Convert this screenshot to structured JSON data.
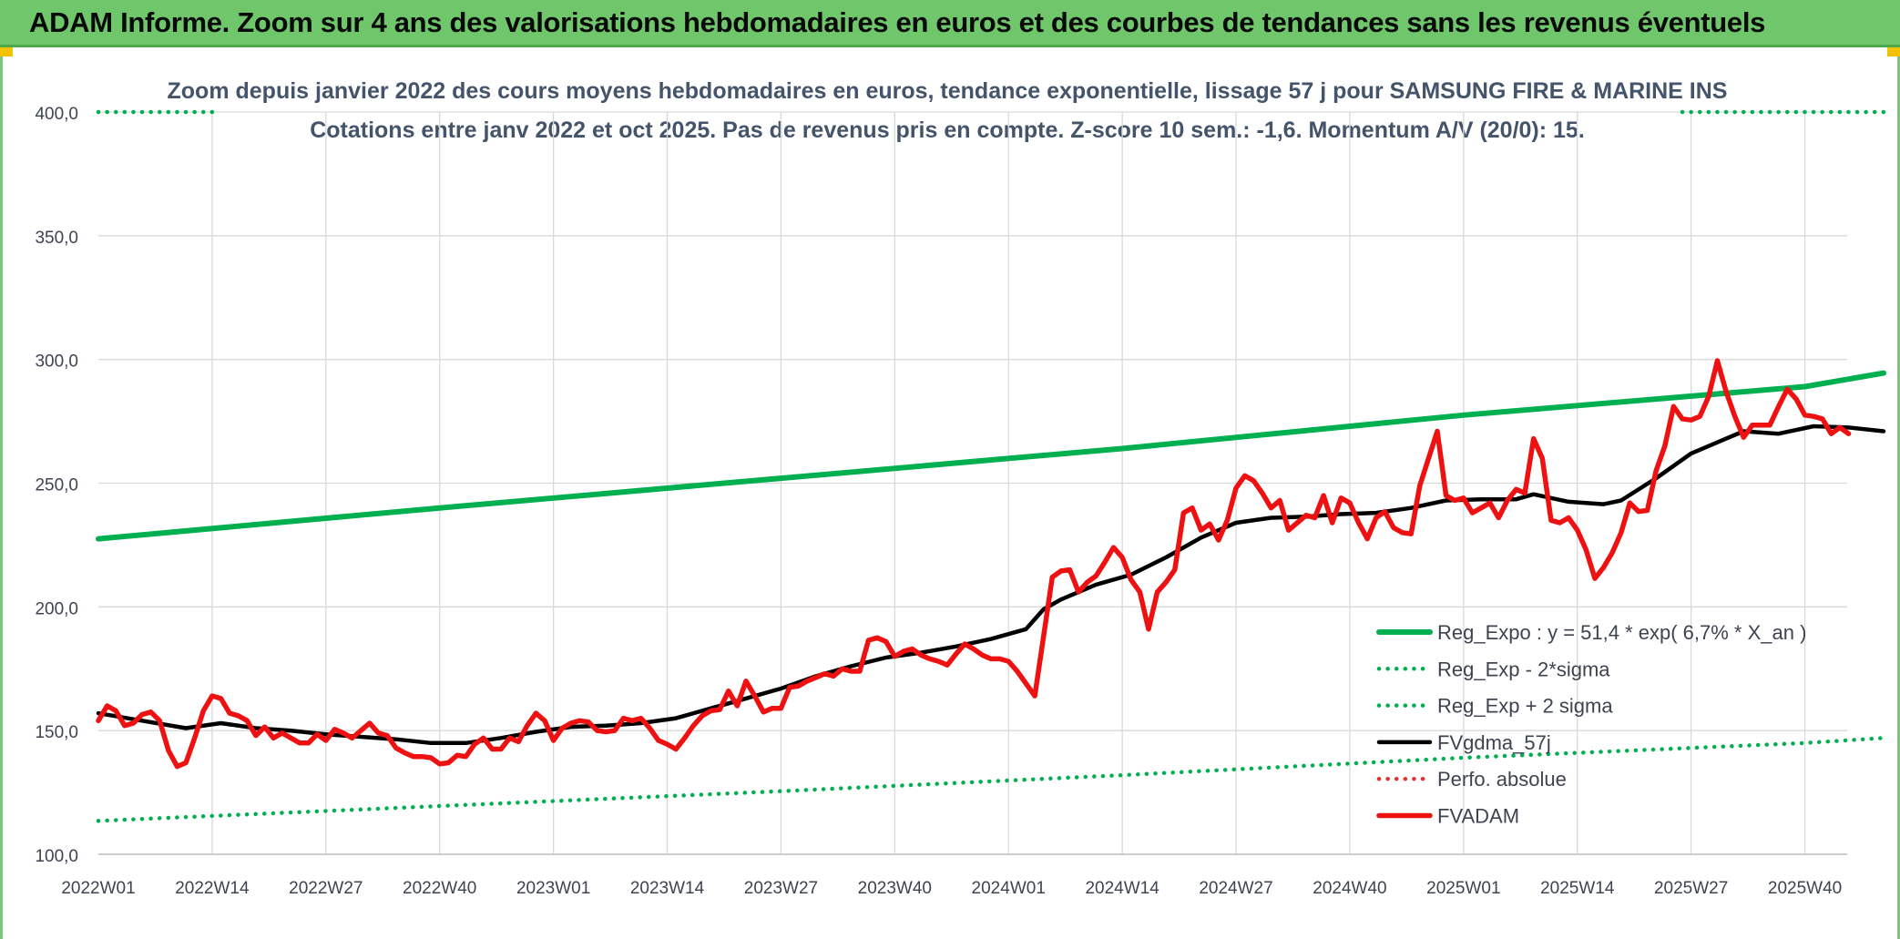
{
  "banner": {
    "text": "ADAM Informe. Zoom sur 4 ans des valorisations hebdomadaires en euros et des courbes de tendances sans les revenus éventuels"
  },
  "colors": {
    "banner_green": "#6fc66b",
    "trend_green": "#00b050",
    "price_red": "#ee1111",
    "smooth_black": "#000000",
    "perf_red": "#e53030"
  },
  "chart_data": {
    "type": "line",
    "title": "Zoom depuis janvier 2022 des cours moyens hebdomadaires en euros, tendance exponentielle, lissage 57 j pour SAMSUNG FIRE & MARINE INS",
    "subtitle": "Cotations entre janv 2022 et oct 2025. Pas de revenus pris en compte. Z-score 10 sem.: -1,6. Momentum A/V (20/0): 15.",
    "xlabel": "",
    "ylabel": "",
    "ylim": [
      100,
      400
    ],
    "y_ticks": [
      "100,0",
      "150,0",
      "200,0",
      "250,0",
      "300,0",
      "350,0",
      "400,0"
    ],
    "x_ticks": [
      "2022W01",
      "2022W14",
      "2022W27",
      "2022W40",
      "2023W01",
      "2023W14",
      "2023W27",
      "2023W40",
      "2024W01",
      "2024W14",
      "2024W27",
      "2024W40",
      "2025W01",
      "2025W14",
      "2025W27",
      "2025W40"
    ],
    "grid": true,
    "legend_position": "bottom-right",
    "series": [
      {
        "name": "Reg_Expo : y = 51,4 * exp( 6,7% *  X_an )",
        "style": "solid-thick",
        "color": "#00b050",
        "points": [
          [
            0,
            227.5
          ],
          [
            39,
            240
          ],
          [
            78,
            252
          ],
          [
            117,
            264
          ],
          [
            156,
            277.5
          ],
          [
            195,
            289
          ],
          [
            204,
            294.5
          ]
        ]
      },
      {
        "name": "Reg_Exp - 2*sigma",
        "style": "dotted",
        "color": "#00b050",
        "points": [
          [
            0,
            113.5
          ],
          [
            39,
            119.5
          ],
          [
            78,
            125.5
          ],
          [
            117,
            132
          ],
          [
            156,
            139
          ],
          [
            195,
            145
          ],
          [
            204,
            147
          ]
        ]
      },
      {
        "name": "Reg_Exp + 2 sigma",
        "style": "dotted",
        "color": "#00b050",
        "points": [
          [
            0,
            400
          ],
          [
            13,
            400
          ],
          [
            195,
            400
          ],
          [
            204,
            400
          ]
        ],
        "visible_segments": [
          [
            0,
            13
          ],
          [
            181,
            204
          ]
        ]
      },
      {
        "name": "FVgdma_57j",
        "style": "solid",
        "color": "#000000",
        "points": [
          [
            0,
            157
          ],
          [
            5,
            154
          ],
          [
            10,
            151
          ],
          [
            14,
            153
          ],
          [
            18,
            151
          ],
          [
            22,
            150
          ],
          [
            26,
            148.5
          ],
          [
            30,
            147.5
          ],
          [
            34,
            146.5
          ],
          [
            38,
            145
          ],
          [
            42,
            145
          ],
          [
            46,
            147
          ],
          [
            50,
            149.5
          ],
          [
            54,
            151.5
          ],
          [
            58,
            152
          ],
          [
            62,
            153
          ],
          [
            66,
            155
          ],
          [
            70,
            159
          ],
          [
            74,
            163
          ],
          [
            78,
            167
          ],
          [
            82,
            172
          ],
          [
            86,
            176
          ],
          [
            90,
            179.5
          ],
          [
            94,
            181.5
          ],
          [
            98,
            184
          ],
          [
            102,
            187
          ],
          [
            106,
            191
          ],
          [
            108,
            199
          ],
          [
            110,
            203
          ],
          [
            114,
            209
          ],
          [
            118,
            213
          ],
          [
            122,
            220
          ],
          [
            126,
            228
          ],
          [
            130,
            234
          ],
          [
            134,
            236
          ],
          [
            138,
            236.5
          ],
          [
            142,
            237.5
          ],
          [
            146,
            238
          ],
          [
            150,
            240
          ],
          [
            154,
            243
          ],
          [
            158,
            243.5
          ],
          [
            162,
            243.5
          ],
          [
            164,
            245.5
          ],
          [
            168,
            242.5
          ],
          [
            172,
            241.5
          ],
          [
            174,
            243
          ],
          [
            178,
            252
          ],
          [
            182,
            262
          ],
          [
            186,
            268
          ],
          [
            188,
            271
          ],
          [
            192,
            270
          ],
          [
            196,
            273
          ],
          [
            200,
            272.5
          ],
          [
            204,
            271
          ]
        ]
      },
      {
        "name": "Perfo. absolue",
        "style": "dotted",
        "color": "#e53030",
        "points": []
      },
      {
        "name": "FVADAM",
        "style": "solid-thick",
        "color": "#ee1111",
        "points": [
          [
            0,
            154
          ],
          [
            1,
            160
          ],
          [
            2,
            158
          ],
          [
            3,
            152
          ],
          [
            4,
            153
          ],
          [
            5,
            156.5
          ],
          [
            6,
            157.5
          ],
          [
            7,
            154
          ],
          [
            8,
            142
          ],
          [
            9,
            135.5
          ],
          [
            10,
            137
          ],
          [
            11,
            147
          ],
          [
            12,
            158
          ],
          [
            13,
            164
          ],
          [
            14,
            163
          ],
          [
            15,
            157
          ],
          [
            16,
            156
          ],
          [
            17,
            154
          ],
          [
            18,
            148
          ],
          [
            19,
            151.5
          ],
          [
            20,
            147
          ],
          [
            21,
            149
          ],
          [
            22,
            147
          ],
          [
            23,
            145
          ],
          [
            24,
            145
          ],
          [
            25,
            148.5
          ],
          [
            26,
            146
          ],
          [
            27,
            150.5
          ],
          [
            28,
            149
          ],
          [
            29,
            147
          ],
          [
            30,
            150
          ],
          [
            31,
            153
          ],
          [
            32,
            149
          ],
          [
            33,
            148
          ],
          [
            34,
            143
          ],
          [
            35,
            141
          ],
          [
            36,
            139.5
          ],
          [
            37,
            139.5
          ],
          [
            38,
            139
          ],
          [
            39,
            136.5
          ],
          [
            40,
            137
          ],
          [
            41,
            140
          ],
          [
            42,
            139.5
          ],
          [
            43,
            144.5
          ],
          [
            44,
            147
          ],
          [
            45,
            142.5
          ],
          [
            46,
            142.5
          ],
          [
            47,
            147
          ],
          [
            48,
            145.5
          ],
          [
            49,
            152
          ],
          [
            50,
            157
          ],
          [
            51,
            154
          ],
          [
            52,
            146
          ],
          [
            53,
            151
          ],
          [
            54,
            153
          ],
          [
            55,
            154
          ],
          [
            56,
            153.5
          ],
          [
            57,
            150
          ],
          [
            58,
            149.5
          ],
          [
            59,
            150
          ],
          [
            60,
            155
          ],
          [
            61,
            154
          ],
          [
            62,
            155
          ],
          [
            63,
            151
          ],
          [
            64,
            146
          ],
          [
            65,
            144.5
          ],
          [
            66,
            142.5
          ],
          [
            67,
            147
          ],
          [
            68,
            152
          ],
          [
            69,
            156
          ],
          [
            70,
            158
          ],
          [
            71,
            158.5
          ],
          [
            72,
            166
          ],
          [
            73,
            160
          ],
          [
            74,
            170
          ],
          [
            75,
            164
          ],
          [
            76,
            157.5
          ],
          [
            77,
            159
          ],
          [
            78,
            159
          ],
          [
            79,
            167.5
          ],
          [
            80,
            168
          ],
          [
            81,
            170
          ],
          [
            82,
            171.5
          ],
          [
            83,
            173
          ],
          [
            84,
            172
          ],
          [
            85,
            175
          ],
          [
            86,
            174
          ],
          [
            87,
            174
          ],
          [
            88,
            186.5
          ],
          [
            89,
            187.5
          ],
          [
            90,
            186
          ],
          [
            91,
            180
          ],
          [
            92,
            182
          ],
          [
            93,
            183
          ],
          [
            94,
            180.5
          ],
          [
            95,
            179
          ],
          [
            96,
            178
          ],
          [
            97,
            176.5
          ],
          [
            98,
            181
          ],
          [
            99,
            185
          ],
          [
            100,
            183
          ],
          [
            101,
            180.5
          ],
          [
            102,
            179
          ],
          [
            103,
            179
          ],
          [
            104,
            178
          ],
          [
            105,
            174
          ],
          [
            106,
            169
          ],
          [
            107,
            164
          ],
          [
            108,
            188
          ],
          [
            109,
            212
          ],
          [
            110,
            214.5
          ],
          [
            111,
            215
          ],
          [
            112,
            206
          ],
          [
            113,
            210
          ],
          [
            114,
            212.5
          ],
          [
            115,
            218
          ],
          [
            116,
            224
          ],
          [
            117,
            220
          ],
          [
            118,
            211
          ],
          [
            119,
            206
          ],
          [
            120,
            191
          ],
          [
            121,
            206
          ],
          [
            122,
            210
          ],
          [
            123,
            215
          ],
          [
            124,
            238
          ],
          [
            125,
            240
          ],
          [
            126,
            231
          ],
          [
            127,
            233.5
          ],
          [
            128,
            227
          ],
          [
            129,
            235
          ],
          [
            130,
            248
          ],
          [
            131,
            253
          ],
          [
            132,
            251
          ],
          [
            133,
            246
          ],
          [
            134,
            240
          ],
          [
            135,
            243
          ],
          [
            136,
            231
          ],
          [
            137,
            234
          ],
          [
            138,
            237
          ],
          [
            139,
            236
          ],
          [
            140,
            245
          ],
          [
            141,
            234
          ],
          [
            142,
            244
          ],
          [
            143,
            242
          ],
          [
            144,
            234
          ],
          [
            145,
            227.5
          ],
          [
            146,
            236
          ],
          [
            147,
            238.5
          ],
          [
            148,
            232
          ],
          [
            149,
            230
          ],
          [
            150,
            229.5
          ],
          [
            151,
            249
          ],
          [
            152,
            260
          ],
          [
            153,
            271
          ],
          [
            154,
            245
          ],
          [
            155,
            243
          ],
          [
            156,
            244
          ],
          [
            157,
            238
          ],
          [
            158,
            240
          ],
          [
            159,
            242
          ],
          [
            160,
            236
          ],
          [
            161,
            243
          ],
          [
            162,
            247.5
          ],
          [
            163,
            246
          ],
          [
            164,
            268
          ],
          [
            165,
            260
          ],
          [
            166,
            235
          ],
          [
            167,
            234
          ],
          [
            168,
            236
          ],
          [
            169,
            231
          ],
          [
            170,
            223
          ],
          [
            171,
            211.5
          ],
          [
            172,
            216
          ],
          [
            173,
            222
          ],
          [
            174,
            230
          ],
          [
            175,
            242
          ],
          [
            176,
            238.5
          ],
          [
            177,
            239
          ],
          [
            178,
            255
          ],
          [
            179,
            265
          ],
          [
            180,
            281
          ],
          [
            181,
            276
          ],
          [
            182,
            275.5
          ],
          [
            183,
            277
          ],
          [
            184,
            285
          ],
          [
            185,
            299.5
          ],
          [
            186,
            287
          ],
          [
            187,
            277
          ],
          [
            188,
            268.5
          ],
          [
            189,
            273.5
          ],
          [
            190,
            273.5
          ],
          [
            191,
            273.5
          ],
          [
            192,
            281
          ],
          [
            193,
            288
          ],
          [
            194,
            284
          ],
          [
            195,
            277.5
          ],
          [
            196,
            277
          ],
          [
            197,
            276
          ],
          [
            198,
            270
          ],
          [
            199,
            272.5
          ],
          [
            200,
            270
          ]
        ]
      }
    ]
  }
}
